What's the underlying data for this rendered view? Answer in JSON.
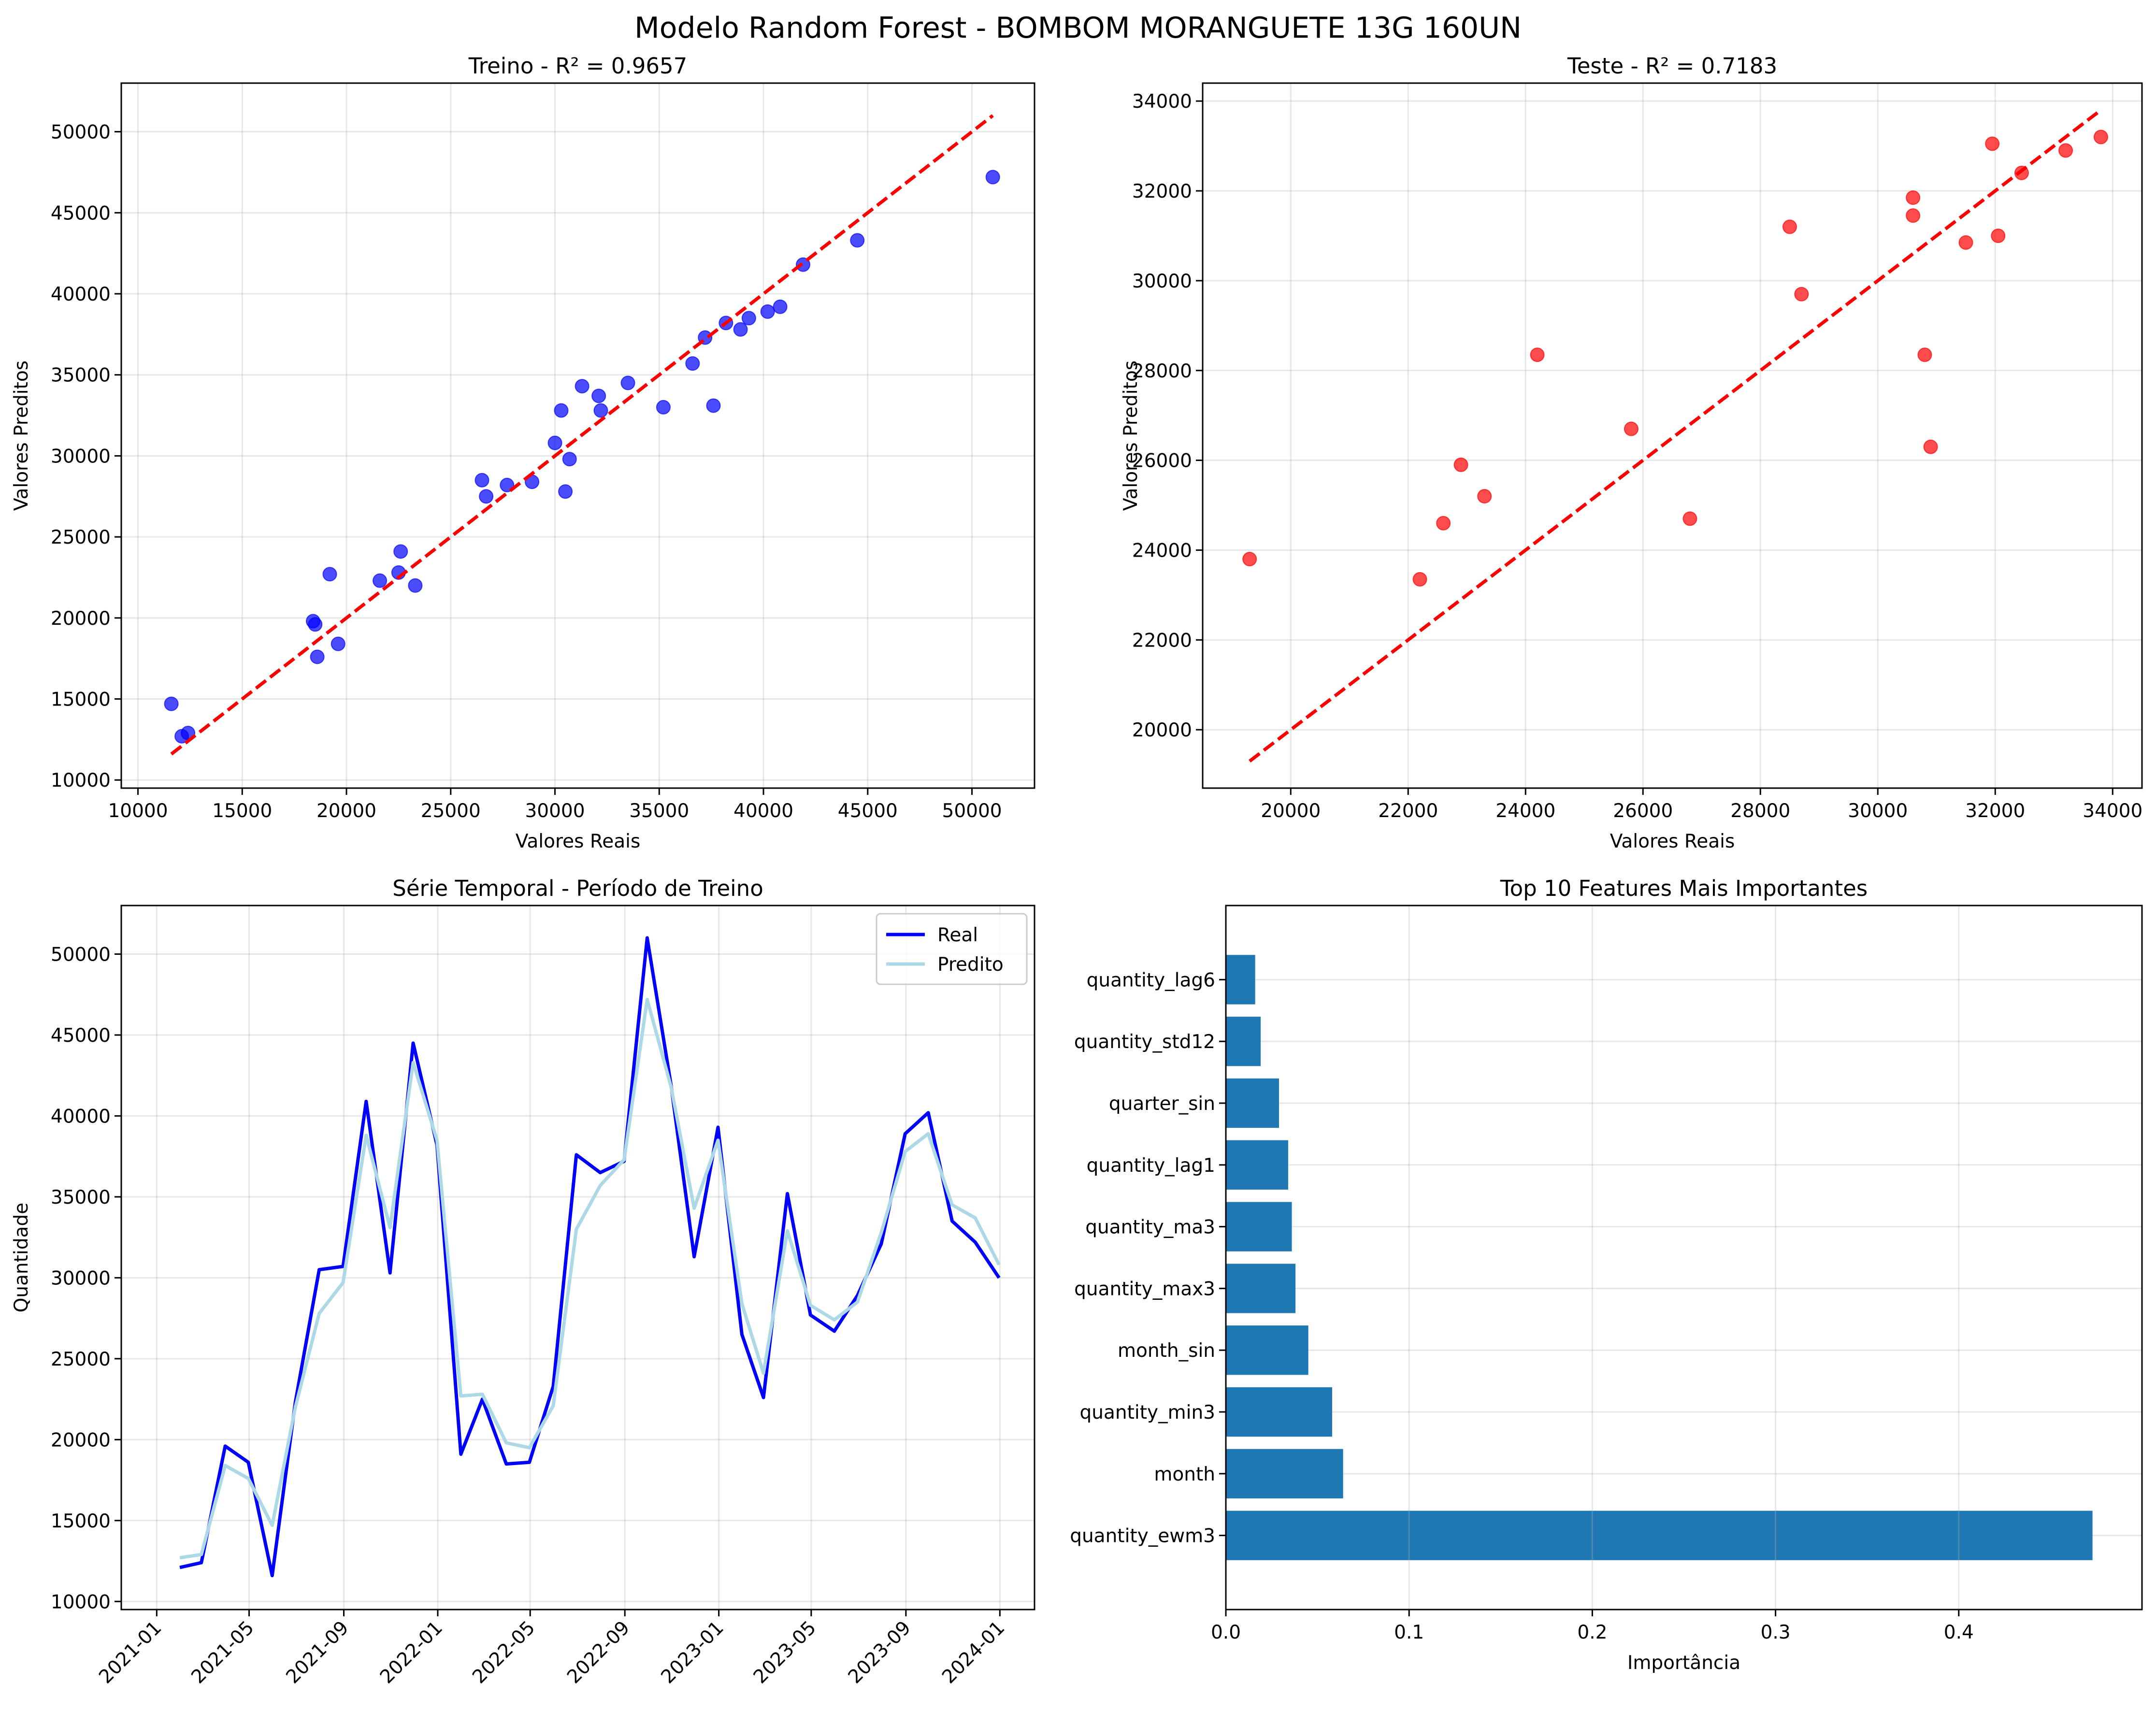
{
  "suptitle": "Modelo Random Forest - BOMBOM MORANGUETE 13G 160UN",
  "chart_data": [
    {
      "type": "scatter",
      "title": "Treino - R² = 0.9657",
      "xlabel": "Valores Reais",
      "ylabel": "Valores Preditos",
      "xlim": [
        9200,
        53000
      ],
      "ylim": [
        9500,
        53000
      ],
      "xticks": [
        10000,
        15000,
        20000,
        25000,
        30000,
        35000,
        40000,
        45000,
        50000
      ],
      "yticks": [
        10000,
        15000,
        20000,
        25000,
        30000,
        35000,
        40000,
        45000,
        50000
      ],
      "grid": true,
      "color": "#0000ff",
      "reference_line": {
        "x": [
          11600,
          51000
        ],
        "y": [
          11600,
          51000
        ],
        "color": "#ff0000",
        "style": "dashed"
      },
      "points": [
        [
          11600,
          14700
        ],
        [
          12100,
          12700
        ],
        [
          12400,
          12900
        ],
        [
          18400,
          19800
        ],
        [
          18500,
          19600
        ],
        [
          18600,
          17600
        ],
        [
          19200,
          22700
        ],
        [
          19600,
          18400
        ],
        [
          21600,
          22300
        ],
        [
          22500,
          22800
        ],
        [
          22600,
          24100
        ],
        [
          23300,
          22000
        ],
        [
          26500,
          28500
        ],
        [
          26700,
          27500
        ],
        [
          27700,
          28200
        ],
        [
          28900,
          28400
        ],
        [
          30000,
          30800
        ],
        [
          30300,
          32800
        ],
        [
          30500,
          27800
        ],
        [
          30700,
          29800
        ],
        [
          31300,
          34300
        ],
        [
          32100,
          33700
        ],
        [
          32200,
          32800
        ],
        [
          33500,
          34500
        ],
        [
          35200,
          33000
        ],
        [
          36600,
          35700
        ],
        [
          37200,
          37300
        ],
        [
          37600,
          33100
        ],
        [
          38200,
          38200
        ],
        [
          38900,
          37800
        ],
        [
          39300,
          38500
        ],
        [
          40200,
          38900
        ],
        [
          40800,
          39200
        ],
        [
          41900,
          41800
        ],
        [
          44500,
          43300
        ],
        [
          51000,
          47200
        ]
      ]
    },
    {
      "type": "scatter",
      "title": "Teste - R² = 0.7183",
      "xlabel": "Valores Reais",
      "ylabel": "Valores Preditos",
      "xlim": [
        18500,
        34500
      ],
      "ylim": [
        18700,
        34400
      ],
      "xticks": [
        20000,
        22000,
        24000,
        26000,
        28000,
        30000,
        32000,
        34000
      ],
      "yticks": [
        20000,
        22000,
        24000,
        26000,
        28000,
        30000,
        32000,
        34000
      ],
      "grid": true,
      "color": "#ff0000",
      "reference_line": {
        "x": [
          19300,
          33800
        ],
        "y": [
          19300,
          33800
        ],
        "color": "#ff0000",
        "style": "dashed"
      },
      "points": [
        [
          19300,
          23800
        ],
        [
          22200,
          23350
        ],
        [
          22600,
          24600
        ],
        [
          22900,
          25900
        ],
        [
          23300,
          25200
        ],
        [
          24200,
          28350
        ],
        [
          25800,
          26700
        ],
        [
          26800,
          24700
        ],
        [
          28500,
          31200
        ],
        [
          28700,
          29700
        ],
        [
          30600,
          31850
        ],
        [
          30600,
          31450
        ],
        [
          30800,
          28350
        ],
        [
          30900,
          26300
        ],
        [
          31500,
          30850
        ],
        [
          31950,
          33050
        ],
        [
          32050,
          31000
        ],
        [
          32450,
          32400
        ],
        [
          33200,
          32900
        ],
        [
          33800,
          33200
        ]
      ]
    },
    {
      "type": "line",
      "title": "Série Temporal - Período de Treino",
      "xlabel": "",
      "ylabel": "Quantidade",
      "xlim": [
        "2020-11-16",
        "2024-02-15"
      ],
      "ylim": [
        9500,
        53000
      ],
      "xticks": [
        "2021-01",
        "2021-05",
        "2021-09",
        "2022-01",
        "2022-05",
        "2022-09",
        "2023-01",
        "2023-05",
        "2023-09",
        "2024-01"
      ],
      "yticks": [
        10000,
        15000,
        20000,
        25000,
        30000,
        35000,
        40000,
        45000,
        50000
      ],
      "grid": true,
      "legend": "top-right",
      "x": [
        "2021-01-31",
        "2021-02-28",
        "2021-03-31",
        "2021-04-30",
        "2021-05-31",
        "2021-06-30",
        "2021-07-31",
        "2021-08-31",
        "2021-09-30",
        "2021-10-31",
        "2021-11-30",
        "2021-12-31",
        "2022-01-31",
        "2022-02-28",
        "2022-03-31",
        "2022-04-30",
        "2022-05-31",
        "2022-06-30",
        "2022-07-31",
        "2022-08-31",
        "2022-09-30",
        "2022-10-31",
        "2022-11-30",
        "2022-12-31",
        "2023-01-31",
        "2023-02-28",
        "2023-03-31",
        "2023-04-30",
        "2023-05-31",
        "2023-06-30",
        "2023-07-31",
        "2023-08-31",
        "2023-09-30",
        "2023-10-31",
        "2023-11-30",
        "2023-12-31"
      ],
      "series": [
        {
          "name": "Real",
          "color": "#0000ff",
          "width": 7,
          "values": [
            12100,
            12400,
            19600,
            18600,
            11600,
            22300,
            30500,
            30700,
            40900,
            30300,
            44500,
            38200,
            19100,
            22500,
            18500,
            18600,
            23300,
            37600,
            36500,
            37200,
            51000,
            41900,
            31300,
            39300,
            26500,
            22600,
            35200,
            27700,
            26700,
            28900,
            32100,
            38900,
            40200,
            33500,
            32200,
            30000
          ]
        },
        {
          "name": "Predito",
          "color": "#add8e6",
          "width": 7,
          "values": [
            12700,
            12900,
            18400,
            17600,
            14700,
            22000,
            27800,
            29700,
            38800,
            33100,
            43300,
            38500,
            22700,
            22800,
            19800,
            19500,
            22100,
            33000,
            35700,
            37300,
            47200,
            41800,
            34300,
            38500,
            28400,
            24100,
            32900,
            28300,
            27400,
            28500,
            32800,
            37800,
            38900,
            34500,
            33700,
            30800
          ]
        }
      ]
    },
    {
      "type": "bar",
      "orientation": "horizontal",
      "title": "Top 10 Features Mais Importantes",
      "xlabel": "Importância",
      "ylabel": "",
      "xlim": [
        0,
        0.5
      ],
      "xticks": [
        0.0,
        0.1,
        0.2,
        0.3,
        0.4
      ],
      "grid": true,
      "color": "#1f77b4",
      "categories": [
        "quantity_ewm3",
        "month",
        "quantity_min3",
        "month_sin",
        "quantity_max3",
        "quantity_ma3",
        "quantity_lag1",
        "quarter_sin",
        "quantity_std12",
        "quantity_lag6"
      ],
      "values": [
        0.473,
        0.064,
        0.058,
        0.045,
        0.038,
        0.036,
        0.034,
        0.029,
        0.019,
        0.016
      ]
    }
  ]
}
